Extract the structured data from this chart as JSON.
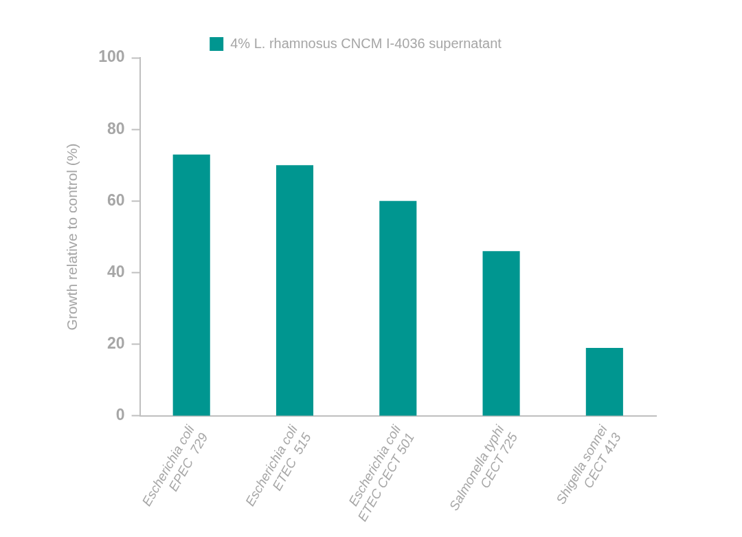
{
  "chart_data": {
    "type": "bar",
    "ylabel": "Growth relative to control (%)",
    "categories": [
      "Escherichia coli\nEPEC  729",
      "Escherichia coli\nETEC  515",
      "Escherichia coli\nETEC CECT 501",
      "Salmonella typhi\nCECT 725",
      "Shigella sonnei\nCECT 413"
    ],
    "series": [
      {
        "name": "4% L. rhamnosus CNCM I-4036 supernatant",
        "color": "#009690",
        "values": [
          73,
          70,
          60,
          46,
          19
        ]
      }
    ],
    "ylim": [
      0,
      100
    ],
    "yticks": [
      0,
      20,
      40,
      60,
      80,
      100
    ],
    "grid": false,
    "legend": "top"
  }
}
